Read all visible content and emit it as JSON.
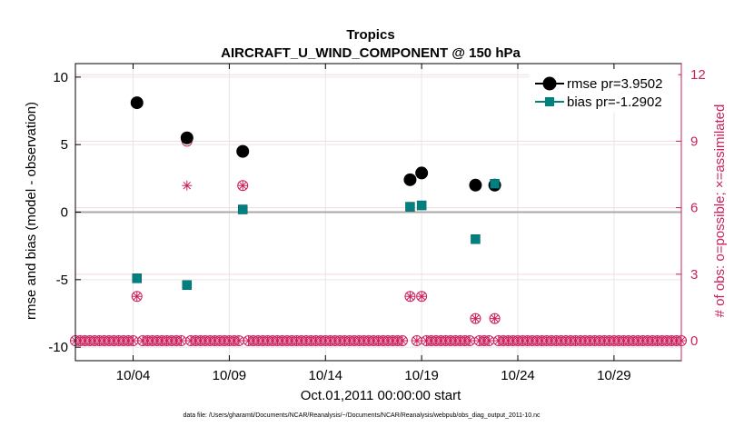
{
  "chart_data": {
    "type": "scatter",
    "title": "Tropics",
    "subtitle": "AIRCRAFT_U_WIND_COMPONENT @ 150 hPa",
    "xlabel": "Oct.01,2011 00:00:00 start",
    "ylabel": "rmse and bias (model - observation)",
    "ylabel_right": "# of obs: o=possible; ×=assimilated",
    "footnote": "data file: /Users/gharamti/Documents/NCAR/Reanalysis/~/Documents/NCAR/Reanalysis/webpub/obs_diag_output_2011-10.nc",
    "xlim": [
      1,
      32.5
    ],
    "ylim": [
      -11,
      11
    ],
    "ylim_right": [
      -0.9,
      12.5
    ],
    "x_ticks": [
      {
        "value": 4,
        "label": "10/04"
      },
      {
        "value": 9,
        "label": "10/09"
      },
      {
        "value": 14,
        "label": "10/14"
      },
      {
        "value": 19,
        "label": "10/19"
      },
      {
        "value": 24,
        "label": "10/24"
      },
      {
        "value": 29,
        "label": "10/29"
      }
    ],
    "y_ticks": [
      {
        "value": -10,
        "label": "-10"
      },
      {
        "value": -5,
        "label": "-5"
      },
      {
        "value": 0,
        "label": "0"
      },
      {
        "value": 5,
        "label": "5"
      },
      {
        "value": 10,
        "label": "10"
      }
    ],
    "y_ticks_right": [
      {
        "value": 0,
        "label": "0"
      },
      {
        "value": 3,
        "label": "3"
      },
      {
        "value": 6,
        "label": "6"
      },
      {
        "value": 9,
        "label": "9"
      },
      {
        "value": 12,
        "label": "12"
      }
    ],
    "grid": true,
    "legend_position": "top-right",
    "series": [
      {
        "name": "rmse pr=3.9502",
        "color": "#000000",
        "marker": "circle",
        "points": [
          {
            "x": 4.2,
            "y": 8.1
          },
          {
            "x": 6.8,
            "y": 5.5
          },
          {
            "x": 9.7,
            "y": 4.5
          },
          {
            "x": 18.4,
            "y": 2.4
          },
          {
            "x": 19.0,
            "y": 2.9
          },
          {
            "x": 21.8,
            "y": 2.0
          },
          {
            "x": 22.8,
            "y": 2.0
          }
        ]
      },
      {
        "name": "bias pr=-1.2902",
        "color": "#008080",
        "marker": "square",
        "points": [
          {
            "x": 4.2,
            "y": -4.9
          },
          {
            "x": 6.8,
            "y": -5.4
          },
          {
            "x": 9.7,
            "y": 0.2
          },
          {
            "x": 18.4,
            "y": 0.4
          },
          {
            "x": 19.0,
            "y": 0.5
          },
          {
            "x": 21.8,
            "y": -2.0
          },
          {
            "x": 22.8,
            "y": 2.1
          }
        ]
      }
    ],
    "obs_possible": {
      "color": "#cc1f5c",
      "x_start": 1.0,
      "x_end": 32.5,
      "x_step": 0.25,
      "nonzero": [
        {
          "x": 4.2,
          "y": 2
        },
        {
          "x": 6.8,
          "y": 9
        },
        {
          "x": 9.7,
          "y": 7
        },
        {
          "x": 18.4,
          "y": 2
        },
        {
          "x": 19.0,
          "y": 2
        },
        {
          "x": 21.8,
          "y": 1
        },
        {
          "x": 22.8,
          "y": 1
        }
      ]
    },
    "obs_assimilated": {
      "color": "#cc1f5c",
      "nonzero": [
        {
          "x": 4.2,
          "y": 2
        },
        {
          "x": 6.8,
          "y": 7
        },
        {
          "x": 9.7,
          "y": 7
        },
        {
          "x": 18.4,
          "y": 2
        },
        {
          "x": 19.0,
          "y": 2
        },
        {
          "x": 21.8,
          "y": 1
        },
        {
          "x": 22.8,
          "y": 1
        }
      ]
    }
  }
}
